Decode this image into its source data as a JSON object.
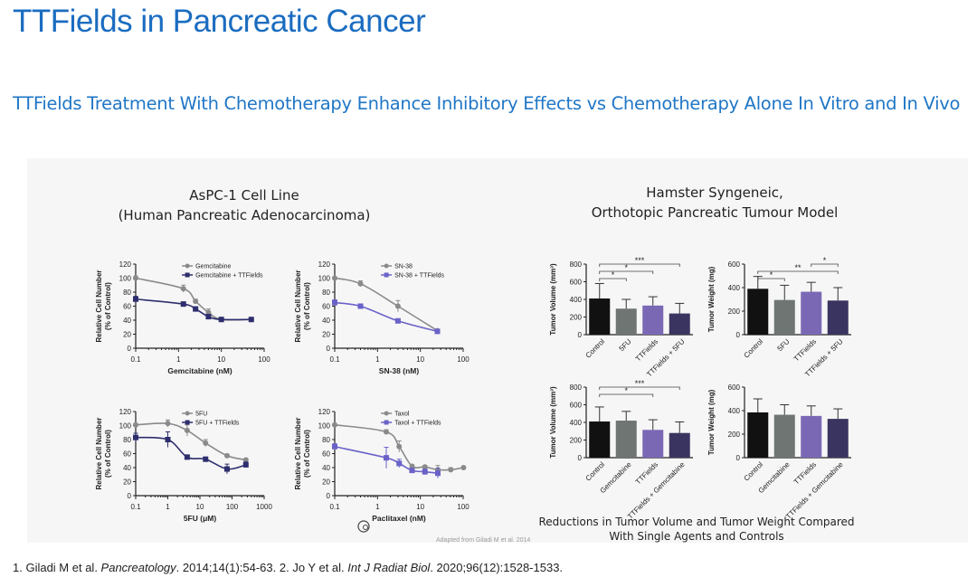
{
  "title": "TTFields in Pancreatic Cancer",
  "subtitle": "TTFields Treatment With Chemotherapy Enhance  Inhibitory Effects vs Chemotherapy Alone In Vitro and In Vivo",
  "left_heading": [
    "AsPC-1 Cell Line",
    "(Human Pancreatic Adenocarcinoma)"
  ],
  "right_heading": [
    "Hamster Syngeneic,",
    "Orthotopic Pancreatic Tumour Model"
  ],
  "caption": [
    "Reductions in Tumor Volume and Tumor Weight Compared",
    "With Single Agents and Controls"
  ],
  "adapted": "Adapted from Giladi M et al. 2014",
  "footnote": {
    "p1": "1. Giladi M et al. ",
    "j1": "Pancreatology",
    "p2": ". 2014;14(1):54-63. 2. Jo Y et al. ",
    "j2": "Int J Radiat Biol",
    "p3": ". 2020;96(12):1528-1533."
  },
  "colors": {
    "title": "#1a6cc0",
    "single": "#8a8a8a",
    "gem_combo": "#2e2e6e",
    "combo_purple": "#6a62c8",
    "bar_control": "#111111",
    "bar_single": "#6e7572",
    "bar_ttfields": "#7b68b5",
    "bar_combo": "#3a3560"
  },
  "chart_data": [
    {
      "type": "line",
      "xscale": "log",
      "xlim": [
        0.1,
        100
      ],
      "ylim": [
        0,
        120
      ],
      "xticks": [
        "0.1",
        "1",
        "10",
        "100"
      ],
      "yticks": [
        "0",
        "20",
        "40",
        "60",
        "80",
        "100",
        "120"
      ],
      "xlabel": "Gemcitabine (nM)",
      "ylabel": [
        "Relative Cell Number",
        "(% of Control)"
      ],
      "legend": "top-right",
      "series": [
        {
          "name": "Gemcitabine",
          "color": "#8a8a8a",
          "marker": "circle",
          "x": [
            0.1,
            1.3,
            2.5,
            5,
            10,
            50
          ],
          "y": [
            100,
            85,
            67,
            51,
            41,
            41
          ],
          "err": [
            3,
            5,
            3,
            5,
            3,
            2
          ]
        },
        {
          "name": "Gemcitabine + TTFields",
          "color": "#2e2e6e",
          "marker": "square",
          "x": [
            0.1,
            1.3,
            2.5,
            5,
            10,
            50
          ],
          "y": [
            70,
            63,
            56,
            45,
            41,
            41
          ],
          "err": [
            4,
            3,
            2,
            3,
            2,
            2
          ]
        }
      ]
    },
    {
      "type": "line",
      "xscale": "log",
      "xlim": [
        0.1,
        100
      ],
      "ylim": [
        0,
        120
      ],
      "xticks": [
        "0.1",
        "1",
        "10",
        "100"
      ],
      "yticks": [
        "0",
        "20",
        "40",
        "60",
        "80",
        "100",
        "120"
      ],
      "xlabel": "SN-38 (nM)",
      "ylabel": [
        "Relative Cell Number",
        "(% of Control)"
      ],
      "legend": "top-right",
      "series": [
        {
          "name": "SN-38",
          "color": "#8a8a8a",
          "marker": "circle",
          "x": [
            0.1,
            0.4,
            3,
            25
          ],
          "y": [
            100,
            92,
            60,
            25
          ],
          "err": [
            2,
            4,
            8,
            2
          ]
        },
        {
          "name": "SN-38 + TTFields",
          "color": "#6a62c8",
          "marker": "square",
          "x": [
            0.1,
            0.4,
            3,
            25
          ],
          "y": [
            65,
            60,
            39,
            24
          ],
          "err": [
            4,
            3,
            2,
            2
          ]
        }
      ]
    },
    {
      "type": "line",
      "xscale": "log",
      "xlim": [
        0.1,
        1000
      ],
      "ylim": [
        0,
        120
      ],
      "xticks": [
        "0.1",
        "1",
        "10",
        "100",
        "1000"
      ],
      "yticks": [
        "0",
        "20",
        "40",
        "60",
        "80",
        "100",
        "120"
      ],
      "xlabel": "5FU (μM)",
      "ylabel": [
        "Relative Cell Number",
        "(% of Control)"
      ],
      "legend": "top-right",
      "series": [
        {
          "name": "5FU",
          "color": "#8a8a8a",
          "marker": "circle",
          "x": [
            0.1,
            1,
            4,
            15,
            70,
            270
          ],
          "y": [
            101,
            103,
            93,
            75,
            57,
            51
          ],
          "err": [
            2,
            5,
            8,
            5,
            2,
            2
          ]
        },
        {
          "name": "5FU + TTFields",
          "color": "#2e2e6e",
          "marker": "square",
          "x": [
            0.1,
            1,
            4,
            15,
            70,
            270
          ],
          "y": [
            83,
            80,
            55,
            52,
            38,
            44
          ],
          "err": [
            6,
            11,
            2,
            3,
            7,
            4
          ]
        }
      ]
    },
    {
      "type": "line",
      "xscale": "log",
      "xlim": [
        0.1,
        100
      ],
      "ylim": [
        0,
        120
      ],
      "xticks": [
        "0.1",
        "1",
        "10",
        "100"
      ],
      "yticks": [
        "0",
        "20",
        "40",
        "60",
        "80",
        "100",
        "120"
      ],
      "xlabel": "Paclitaxel (nM)",
      "ylabel": [
        "Relative Cell Number",
        "(% of Control)"
      ],
      "legend": "top-right",
      "series": [
        {
          "name": "Taxol",
          "color": "#8a8a8a",
          "marker": "circle",
          "x": [
            0.1,
            1.6,
            3.2,
            6.4,
            12.8,
            25.6,
            51.2,
            102
          ],
          "y": [
            101,
            91,
            70,
            42,
            41,
            37,
            37,
            40
          ],
          "err": [
            2,
            3,
            8,
            2,
            2,
            6,
            3,
            2
          ]
        },
        {
          "name": "Taxol + TTFields",
          "color": "#6a62c8",
          "marker": "square",
          "x": [
            0.1,
            1.6,
            3.2,
            6.4,
            12.8,
            25.6
          ],
          "y": [
            70,
            54,
            46,
            36,
            34,
            32
          ],
          "err": [
            4,
            15,
            6,
            3,
            4,
            7
          ]
        }
      ]
    },
    {
      "type": "bar",
      "ylabel": "Tumor Volume (mm³)",
      "ylim": [
        0,
        800
      ],
      "yticks": [
        "0",
        "200",
        "400",
        "600",
        "800"
      ],
      "categories": [
        "Control",
        "5FU",
        "TTFields",
        "TTFields + 5FU"
      ],
      "values": [
        410,
        295,
        330,
        240
      ],
      "err_upper": [
        580,
        400,
        430,
        355
      ],
      "significance": [
        {
          "from": 0,
          "to": 1,
          "label": "*"
        },
        {
          "from": 0,
          "to": 2,
          "label": "*"
        },
        {
          "from": 0,
          "to": 3,
          "label": "***"
        }
      ]
    },
    {
      "type": "bar",
      "ylabel": "Tumor Weight (mg)",
      "ylim": [
        0,
        600
      ],
      "yticks": [
        "0",
        "200",
        "400",
        "600"
      ],
      "categories": [
        "Control",
        "5FU",
        "TTFields",
        "TTFields + 5FU"
      ],
      "values": [
        390,
        295,
        365,
        290
      ],
      "err_upper": [
        495,
        420,
        445,
        400
      ],
      "significance": [
        {
          "from": 0,
          "to": 1,
          "label": "*"
        },
        {
          "from": 0,
          "to": 3,
          "label": "**"
        },
        {
          "from": 2,
          "to": 3,
          "label": "*"
        }
      ]
    },
    {
      "type": "bar",
      "ylabel": "Tumor Volume (mm³)",
      "ylim": [
        0,
        800
      ],
      "yticks": [
        "0",
        "200",
        "400",
        "600",
        "800"
      ],
      "categories": [
        "Control",
        "Gemcitabine",
        "TTFields",
        "TTFields + Gemcitabine"
      ],
      "values": [
        410,
        420,
        315,
        280
      ],
      "err_upper": [
        575,
        525,
        430,
        405
      ],
      "significance": [
        {
          "from": 0,
          "to": 2,
          "label": "*"
        },
        {
          "from": 0,
          "to": 3,
          "label": "***"
        }
      ]
    },
    {
      "type": "bar",
      "ylabel": "Tumor Weight (mg)",
      "ylim": [
        0,
        600
      ],
      "yticks": [
        "0",
        "200",
        "400",
        "600"
      ],
      "categories": [
        "Control",
        "Gemcitabine",
        "TTFields",
        "TTFields + Gemcitabine"
      ],
      "values": [
        385,
        365,
        355,
        330
      ],
      "err_upper": [
        500,
        450,
        440,
        415
      ],
      "significance": []
    }
  ]
}
